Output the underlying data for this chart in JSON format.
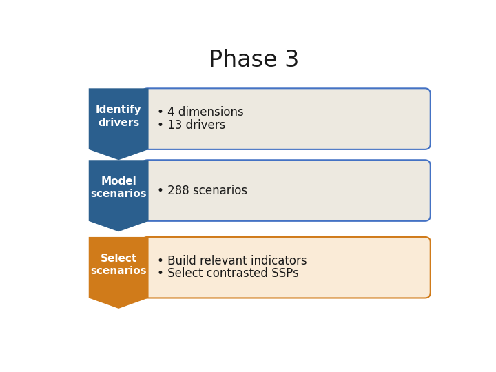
{
  "title": "Phase 3",
  "title_fontsize": 24,
  "title_color": "#1a1a1a",
  "background_color": "#ffffff",
  "rows": [
    {
      "arrow_color": "#2B5F8E",
      "arrow_label": "Identify\ndrivers",
      "box_fill": "#EDE9E0",
      "box_border": "#4472C4",
      "bullet_text": [
        "• 4 dimensions",
        "• 13 drivers"
      ]
    },
    {
      "arrow_color": "#2B5F8E",
      "arrow_label": "Model\nscenarios",
      "box_fill": "#EDE9E0",
      "box_border": "#4472C4",
      "bullet_text": [
        "• 288 scenarios"
      ]
    },
    {
      "arrow_color": "#D07B1A",
      "arrow_label": "Select\nscenarios",
      "box_fill": "#FAEBD7",
      "box_border": "#D07B1A",
      "bullet_text": [
        "• Build relevant indicators",
        "• Select contrasted SSPs"
      ]
    }
  ],
  "arrow_label_color": "#ffffff",
  "arrow_label_fontsize": 11,
  "bullet_fontsize": 12,
  "bullet_color": "#1a1a1a"
}
